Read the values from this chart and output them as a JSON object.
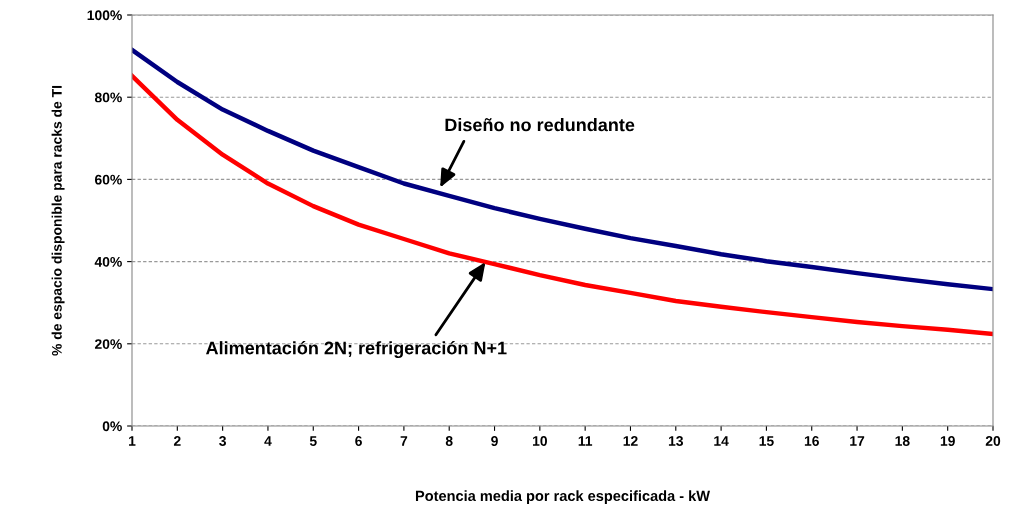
{
  "chart_data": {
    "type": "line",
    "xlabel": "Potencia media por rack especificada - kW",
    "ylabel": "% de espacio disponible para racks de TI",
    "x": [
      1,
      2,
      3,
      4,
      5,
      6,
      7,
      8,
      9,
      10,
      11,
      12,
      13,
      14,
      15,
      16,
      17,
      18,
      19,
      20
    ],
    "series": [
      {
        "color": "#000080",
        "values": [
          91.5,
          83.7,
          77,
          71.8,
          67,
          63,
          59,
          56,
          53,
          50.4,
          48,
          45.7,
          43.8,
          41.8,
          40.1,
          38.7,
          37.2,
          35.8,
          34.5,
          33.3
        ]
      },
      {
        "color": "#ff0000",
        "values": [
          85.2,
          74.5,
          66,
          59,
          53.5,
          49,
          45.5,
          42,
          39.4,
          36.7,
          34.3,
          32.4,
          30.4,
          29,
          27.7,
          26.5,
          25.3,
          24.3,
          23.4,
          22.4
        ]
      }
    ],
    "annotations": [
      {
        "text": "Diseño no redundante",
        "x": 7.8,
        "y": 58
      },
      {
        "text": "Alimentación 2N; refrigeración N+1",
        "x": 8.8,
        "y": 39.9
      }
    ],
    "xlim": [
      1,
      20
    ],
    "xticks": [
      1,
      2,
      3,
      4,
      5,
      6,
      7,
      8,
      9,
      10,
      11,
      12,
      13,
      14,
      15,
      16,
      17,
      18,
      19,
      20
    ],
    "ylim": [
      0,
      100
    ],
    "yticks": [
      {
        "value": 0,
        "label": "0%"
      },
      {
        "value": 20,
        "label": "20%"
      },
      {
        "value": 40,
        "label": "40%"
      },
      {
        "value": 60,
        "label": "60%"
      },
      {
        "value": 80,
        "label": "80%"
      },
      {
        "value": 100,
        "label": "100%"
      }
    ],
    "grid": "y",
    "marker": "none",
    "line_style": "solid",
    "legend": false
  }
}
